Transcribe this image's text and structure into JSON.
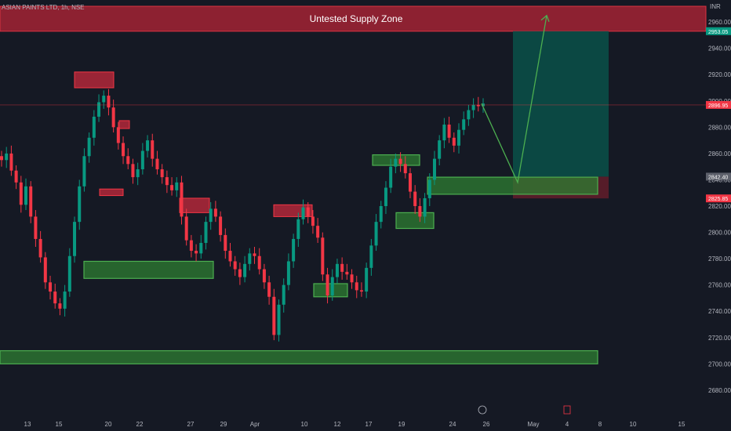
{
  "header": {
    "symbol": "ASIAN PAINTS LTD, 1h, NSE"
  },
  "currency": "INR",
  "chart_data": {
    "type": "candlestick",
    "ylim": [
      2668,
      2972
    ],
    "y_ticks": [
      2680,
      2700,
      2720,
      2740,
      2760,
      2780,
      2800,
      2820,
      2840,
      2860,
      2880,
      2900,
      2920,
      2940,
      2960
    ],
    "x_ticks": [
      "13",
      "15",
      "20",
      "22",
      "27",
      "29",
      "Apr",
      "10",
      "12",
      "17",
      "19",
      "24",
      "26",
      "May",
      "4",
      "8",
      "10",
      "15"
    ],
    "price_tags": [
      {
        "label": "2953.05",
        "value": 2953.05,
        "color": "#089981"
      },
      {
        "label": "2896.95",
        "value": 2896.95,
        "color": "#f23645"
      },
      {
        "label": "2842.40",
        "value": 2842.4,
        "color": "#5d606b"
      },
      {
        "label": "2825.85",
        "value": 2825.85,
        "color": "#f23645"
      }
    ],
    "supply_zone": {
      "label": "Untested Supply Zone",
      "top": 2972,
      "bottom": 2953
    },
    "trade_box": {
      "target": 2953.05,
      "entry": 2842.4,
      "stop": 2825.85
    },
    "projection_path": [
      2898,
      2838,
      2965
    ],
    "demand_zones": [
      {
        "top": 2778,
        "bottom": 2765
      },
      {
        "top": 2761,
        "bottom": 2751
      },
      {
        "top": 2815,
        "bottom": 2803
      },
      {
        "top": 2859,
        "bottom": 2851
      },
      {
        "top": 2842,
        "bottom": 2829
      },
      {
        "top": 2710,
        "bottom": 2700
      }
    ],
    "supply_blocks": [
      {
        "top": 2922,
        "bottom": 2910
      },
      {
        "top": 2885,
        "bottom": 2879
      },
      {
        "top": 2833,
        "bottom": 2828
      },
      {
        "top": 2821,
        "bottom": 2812
      },
      {
        "top": 2826,
        "bottom": 2815
      }
    ],
    "price_series": [
      2855,
      2860,
      2847,
      2838,
      2821,
      2835,
      2812,
      2795,
      2781,
      2762,
      2755,
      2746,
      2742,
      2755,
      2782,
      2808,
      2835,
      2858,
      2872,
      2888,
      2899,
      2904,
      2895,
      2880,
      2868,
      2858,
      2852,
      2842,
      2848,
      2862,
      2870,
      2856,
      2848,
      2842,
      2836,
      2832,
      2838,
      2812,
      2794,
      2786,
      2784,
      2792,
      2808,
      2818,
      2812,
      2798,
      2786,
      2778,
      2772,
      2766,
      2776,
      2784,
      2782,
      2772,
      2762,
      2751,
      2722,
      2745,
      2760,
      2778,
      2795,
      2810,
      2819,
      2812,
      2805,
      2796,
      2768,
      2752,
      2766,
      2776,
      2770,
      2768,
      2762,
      2756,
      2755,
      2773,
      2790,
      2808,
      2820,
      2834,
      2850,
      2856,
      2852,
      2845,
      2831,
      2820,
      2812,
      2826,
      2840,
      2856,
      2870,
      2882,
      2872,
      2866,
      2878,
      2886,
      2893,
      2897,
      2896,
      2898
    ]
  }
}
